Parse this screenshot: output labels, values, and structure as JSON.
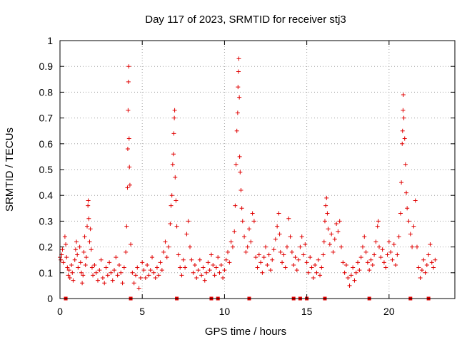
{
  "chart_data": {
    "type": "scatter",
    "title": "Day 117 of 2023, SRMTID for receiver stj3",
    "xlabel": "GPS time / hours",
    "ylabel": "SRMTID / TECUs",
    "xlim": [
      0,
      24
    ],
    "ylim": [
      0,
      1
    ],
    "x_ticks": [
      0,
      5,
      10,
      15,
      20
    ],
    "x_tick_labels": [
      "0",
      "5",
      "10",
      "15",
      "20"
    ],
    "y_ticks": [
      0,
      0.1,
      0.2,
      0.3,
      0.4,
      0.5,
      0.6,
      0.7,
      0.8,
      0.9,
      1
    ],
    "y_tick_labels": [
      "0",
      "0.1",
      "0.2",
      "0.3",
      "0.4",
      "0.5",
      "0.6",
      "0.7",
      "0.8",
      "0.9",
      "1"
    ],
    "grid": true,
    "marker": "+",
    "marker_color": "#e00000",
    "series": [
      {
        "name": "SRMTID",
        "points": [
          [
            0.0,
            0.16
          ],
          [
            0.05,
            0.15
          ],
          [
            0.1,
            0.17
          ],
          [
            0.15,
            0.19
          ],
          [
            0.2,
            0.14
          ],
          [
            0.3,
            0.24
          ],
          [
            0.35,
            0.21
          ],
          [
            0.4,
            0.16
          ],
          [
            0.45,
            0.12
          ],
          [
            0.5,
            0.09
          ],
          [
            0.55,
            0.11
          ],
          [
            0.6,
            0.08
          ],
          [
            0.7,
            0.13
          ],
          [
            0.75,
            0.1
          ],
          [
            0.8,
            0.07
          ],
          [
            0.9,
            0.15
          ],
          [
            0.95,
            0.19
          ],
          [
            1.0,
            0.22
          ],
          [
            1.05,
            0.17
          ],
          [
            1.1,
            0.12
          ],
          [
            1.2,
            0.2
          ],
          [
            1.25,
            0.14
          ],
          [
            1.3,
            0.1
          ],
          [
            1.35,
            0.06
          ],
          [
            1.4,
            0.09
          ],
          [
            1.45,
            0.18
          ],
          [
            1.5,
            0.24
          ],
          [
            1.55,
            0.13
          ],
          [
            1.6,
            0.16
          ],
          [
            1.65,
            0.28
          ],
          [
            1.7,
            0.36
          ],
          [
            1.72,
            0.38
          ],
          [
            1.75,
            0.31
          ],
          [
            1.8,
            0.22
          ],
          [
            1.85,
            0.27
          ],
          [
            1.9,
            0.19
          ],
          [
            1.95,
            0.12
          ],
          [
            2.0,
            0.09
          ],
          [
            2.1,
            0.13
          ],
          [
            2.2,
            0.1
          ],
          [
            2.3,
            0.07
          ],
          [
            2.4,
            0.11
          ],
          [
            2.5,
            0.15
          ],
          [
            2.6,
            0.08
          ],
          [
            2.7,
            0.06
          ],
          [
            2.8,
            0.12
          ],
          [
            2.9,
            0.09
          ],
          [
            3.0,
            0.14
          ],
          [
            3.1,
            0.1
          ],
          [
            3.2,
            0.07
          ],
          [
            3.3,
            0.11
          ],
          [
            3.4,
            0.16
          ],
          [
            3.5,
            0.09
          ],
          [
            3.6,
            0.13
          ],
          [
            3.7,
            0.1
          ],
          [
            3.8,
            0.06
          ],
          [
            3.9,
            0.12
          ],
          [
            4.0,
            0.18
          ],
          [
            4.05,
            0.28
          ],
          [
            4.1,
            0.43
          ],
          [
            4.12,
            0.58
          ],
          [
            4.14,
            0.73
          ],
          [
            4.16,
            0.84
          ],
          [
            4.18,
            0.9
          ],
          [
            4.2,
            0.62
          ],
          [
            4.22,
            0.51
          ],
          [
            4.25,
            0.44
          ],
          [
            4.3,
            0.21
          ],
          [
            4.4,
            0.1
          ],
          [
            4.5,
            0.06
          ],
          [
            4.6,
            0.09
          ],
          [
            4.7,
            0.12
          ],
          [
            4.8,
            0.04
          ],
          [
            4.9,
            0.08
          ],
          [
            5.0,
            0.14
          ],
          [
            5.1,
            0.11
          ],
          [
            5.2,
            0.08
          ],
          [
            5.3,
            0.13
          ],
          [
            5.4,
            0.09
          ],
          [
            5.5,
            0.11
          ],
          [
            5.6,
            0.16
          ],
          [
            5.7,
            0.1
          ],
          [
            5.8,
            0.08
          ],
          [
            5.9,
            0.12
          ],
          [
            6.0,
            0.09
          ],
          [
            6.1,
            0.14
          ],
          [
            6.2,
            0.11
          ],
          [
            6.3,
            0.18
          ],
          [
            6.4,
            0.22
          ],
          [
            6.5,
            0.16
          ],
          [
            6.6,
            0.2
          ],
          [
            6.7,
            0.29
          ],
          [
            6.75,
            0.36
          ],
          [
            6.8,
            0.4
          ],
          [
            6.85,
            0.52
          ],
          [
            6.9,
            0.56
          ],
          [
            6.92,
            0.64
          ],
          [
            6.95,
            0.7
          ],
          [
            6.97,
            0.73
          ],
          [
            7.0,
            0.47
          ],
          [
            7.05,
            0.38
          ],
          [
            7.1,
            0.28
          ],
          [
            7.2,
            0.17
          ],
          [
            7.3,
            0.12
          ],
          [
            7.4,
            0.09
          ],
          [
            7.5,
            0.15
          ],
          [
            7.6,
            0.12
          ],
          [
            7.7,
            0.25
          ],
          [
            7.8,
            0.3
          ],
          [
            7.9,
            0.2
          ],
          [
            8.0,
            0.15
          ],
          [
            8.1,
            0.1
          ],
          [
            8.2,
            0.13
          ],
          [
            8.3,
            0.08
          ],
          [
            8.4,
            0.11
          ],
          [
            8.5,
            0.15
          ],
          [
            8.6,
            0.09
          ],
          [
            8.7,
            0.12
          ],
          [
            8.8,
            0.07
          ],
          [
            8.9,
            0.1
          ],
          [
            9.0,
            0.14
          ],
          [
            9.1,
            0.11
          ],
          [
            9.2,
            0.17
          ],
          [
            9.3,
            0.13
          ],
          [
            9.4,
            0.09
          ],
          [
            9.5,
            0.12
          ],
          [
            9.6,
            0.16
          ],
          [
            9.7,
            0.1
          ],
          [
            9.8,
            0.13
          ],
          [
            9.9,
            0.08
          ],
          [
            10.0,
            0.11
          ],
          [
            10.1,
            0.15
          ],
          [
            10.2,
            0.18
          ],
          [
            10.3,
            0.14
          ],
          [
            10.4,
            0.22
          ],
          [
            10.5,
            0.2
          ],
          [
            10.6,
            0.26
          ],
          [
            10.65,
            0.36
          ],
          [
            10.7,
            0.52
          ],
          [
            10.75,
            0.65
          ],
          [
            10.8,
            0.72
          ],
          [
            10.82,
            0.82
          ],
          [
            10.85,
            0.88
          ],
          [
            10.87,
            0.93
          ],
          [
            10.9,
            0.78
          ],
          [
            10.92,
            0.55
          ],
          [
            10.95,
            0.49
          ],
          [
            11.0,
            0.42
          ],
          [
            11.05,
            0.35
          ],
          [
            11.1,
            0.3
          ],
          [
            11.2,
            0.24
          ],
          [
            11.3,
            0.18
          ],
          [
            11.4,
            0.2
          ],
          [
            11.5,
            0.27
          ],
          [
            11.6,
            0.22
          ],
          [
            11.7,
            0.33
          ],
          [
            11.8,
            0.3
          ],
          [
            11.9,
            0.16
          ],
          [
            12.0,
            0.12
          ],
          [
            12.1,
            0.17
          ],
          [
            12.2,
            0.14
          ],
          [
            12.3,
            0.1
          ],
          [
            12.4,
            0.16
          ],
          [
            12.5,
            0.2
          ],
          [
            12.6,
            0.13
          ],
          [
            12.7,
            0.17
          ],
          [
            12.8,
            0.11
          ],
          [
            12.9,
            0.15
          ],
          [
            13.0,
            0.19
          ],
          [
            13.1,
            0.23
          ],
          [
            13.2,
            0.28
          ],
          [
            13.3,
            0.33
          ],
          [
            13.35,
            0.25
          ],
          [
            13.4,
            0.18
          ],
          [
            13.5,
            0.14
          ],
          [
            13.6,
            0.17
          ],
          [
            13.7,
            0.12
          ],
          [
            13.8,
            0.2
          ],
          [
            13.9,
            0.31
          ],
          [
            14.0,
            0.24
          ],
          [
            14.1,
            0.18
          ],
          [
            14.2,
            0.13
          ],
          [
            14.3,
            0.16
          ],
          [
            14.4,
            0.11
          ],
          [
            14.5,
            0.15
          ],
          [
            14.6,
            0.2
          ],
          [
            14.7,
            0.24
          ],
          [
            14.8,
            0.17
          ],
          [
            14.9,
            0.21
          ],
          [
            15.0,
            0.14
          ],
          [
            15.1,
            0.1
          ],
          [
            15.2,
            0.16
          ],
          [
            15.3,
            0.12
          ],
          [
            15.4,
            0.08
          ],
          [
            15.5,
            0.13
          ],
          [
            15.6,
            0.1
          ],
          [
            15.7,
            0.15
          ],
          [
            15.8,
            0.09
          ],
          [
            15.9,
            0.12
          ],
          [
            16.0,
            0.17
          ],
          [
            16.05,
            0.22
          ],
          [
            16.1,
            0.3
          ],
          [
            16.15,
            0.36
          ],
          [
            16.2,
            0.39
          ],
          [
            16.25,
            0.33
          ],
          [
            16.3,
            0.27
          ],
          [
            16.4,
            0.21
          ],
          [
            16.5,
            0.25
          ],
          [
            16.6,
            0.18
          ],
          [
            16.7,
            0.23
          ],
          [
            16.8,
            0.29
          ],
          [
            16.9,
            0.26
          ],
          [
            17.0,
            0.3
          ],
          [
            17.1,
            0.2
          ],
          [
            17.2,
            0.14
          ],
          [
            17.3,
            0.1
          ],
          [
            17.4,
            0.13
          ],
          [
            17.5,
            0.08
          ],
          [
            17.6,
            0.05
          ],
          [
            17.7,
            0.09
          ],
          [
            17.8,
            0.12
          ],
          [
            17.9,
            0.07
          ],
          [
            18.0,
            0.1
          ],
          [
            18.1,
            0.14
          ],
          [
            18.2,
            0.11
          ],
          [
            18.3,
            0.16
          ],
          [
            18.4,
            0.2
          ],
          [
            18.5,
            0.24
          ],
          [
            18.6,
            0.18
          ],
          [
            18.7,
            0.14
          ],
          [
            18.8,
            0.11
          ],
          [
            18.9,
            0.15
          ],
          [
            19.0,
            0.13
          ],
          [
            19.1,
            0.17
          ],
          [
            19.2,
            0.22
          ],
          [
            19.3,
            0.28
          ],
          [
            19.35,
            0.3
          ],
          [
            19.4,
            0.2
          ],
          [
            19.5,
            0.16
          ],
          [
            19.6,
            0.19
          ],
          [
            19.7,
            0.14
          ],
          [
            19.8,
            0.12
          ],
          [
            19.9,
            0.17
          ],
          [
            20.0,
            0.22
          ],
          [
            20.1,
            0.18
          ],
          [
            20.2,
            0.15
          ],
          [
            20.3,
            0.21
          ],
          [
            20.4,
            0.13
          ],
          [
            20.5,
            0.17
          ],
          [
            20.6,
            0.24
          ],
          [
            20.7,
            0.33
          ],
          [
            20.75,
            0.45
          ],
          [
            20.8,
            0.6
          ],
          [
            20.82,
            0.65
          ],
          [
            20.85,
            0.73
          ],
          [
            20.87,
            0.79
          ],
          [
            20.9,
            0.7
          ],
          [
            20.95,
            0.62
          ],
          [
            21.0,
            0.52
          ],
          [
            21.05,
            0.41
          ],
          [
            21.1,
            0.35
          ],
          [
            21.2,
            0.3
          ],
          [
            21.3,
            0.25
          ],
          [
            21.4,
            0.2
          ],
          [
            21.5,
            0.28
          ],
          [
            21.6,
            0.38
          ],
          [
            21.7,
            0.2
          ],
          [
            21.8,
            0.12
          ],
          [
            21.9,
            0.08
          ],
          [
            22.0,
            0.11
          ],
          [
            22.1,
            0.15
          ],
          [
            22.2,
            0.1
          ],
          [
            22.3,
            0.13
          ],
          [
            22.4,
            0.17
          ],
          [
            22.5,
            0.21
          ],
          [
            22.6,
            0.14
          ],
          [
            22.7,
            0.12
          ],
          [
            22.8,
            0.15
          ]
        ]
      }
    ],
    "bottom_markers_x": [
      0.35,
      4.3,
      7.1,
      9.2,
      9.6,
      11.5,
      14.2,
      14.6,
      15.0,
      16.1,
      18.8,
      21.3,
      22.4
    ]
  }
}
